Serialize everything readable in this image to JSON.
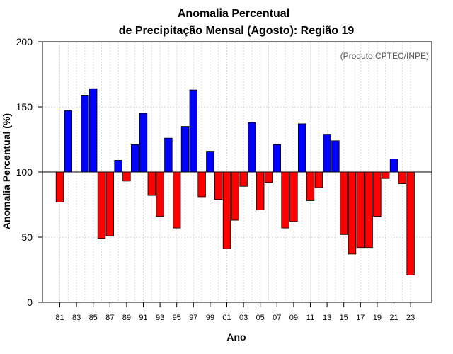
{
  "chart_data": {
    "type": "bar",
    "title": "Anomalia Percentual",
    "subtitle": "de Precipitação Mensal (Agosto): Região 19",
    "xlabel": "Ano",
    "ylabel": "Anomalia Percentual (%)",
    "annotation": "(Produto:CPTEC/INPE)",
    "ylim": [
      0,
      200
    ],
    "yticks": [
      0,
      50,
      100,
      150,
      200
    ],
    "baseline": 100,
    "grid": true,
    "colors": {
      "above": "#0000ff",
      "below": "#ff0000"
    },
    "categories": [
      "81",
      "82",
      "83",
      "84",
      "85",
      "86",
      "87",
      "88",
      "89",
      "90",
      "91",
      "92",
      "93",
      "94",
      "95",
      "96",
      "97",
      "98",
      "99",
      "00",
      "01",
      "02",
      "03",
      "04",
      "05",
      "06",
      "07",
      "08",
      "09",
      "10",
      "11",
      "12",
      "13",
      "14",
      "15",
      "16",
      "17",
      "18",
      "19",
      "20",
      "21",
      "22",
      "23"
    ],
    "tick_labels": [
      "81",
      "83",
      "85",
      "87",
      "89",
      "91",
      "93",
      "95",
      "97",
      "99",
      "01",
      "03",
      "05",
      "07",
      "09",
      "11",
      "13",
      "15",
      "17",
      "19",
      "21",
      "23"
    ],
    "values": [
      77,
      147,
      100,
      159,
      164,
      49,
      51,
      109,
      93,
      121,
      145,
      82,
      66,
      126,
      57,
      135,
      163,
      81,
      116,
      79,
      41,
      63,
      89,
      138,
      71,
      92,
      121,
      57,
      62,
      137,
      78,
      88,
      129,
      124,
      52,
      37,
      42,
      42,
      66,
      95,
      110,
      91,
      21
    ]
  }
}
